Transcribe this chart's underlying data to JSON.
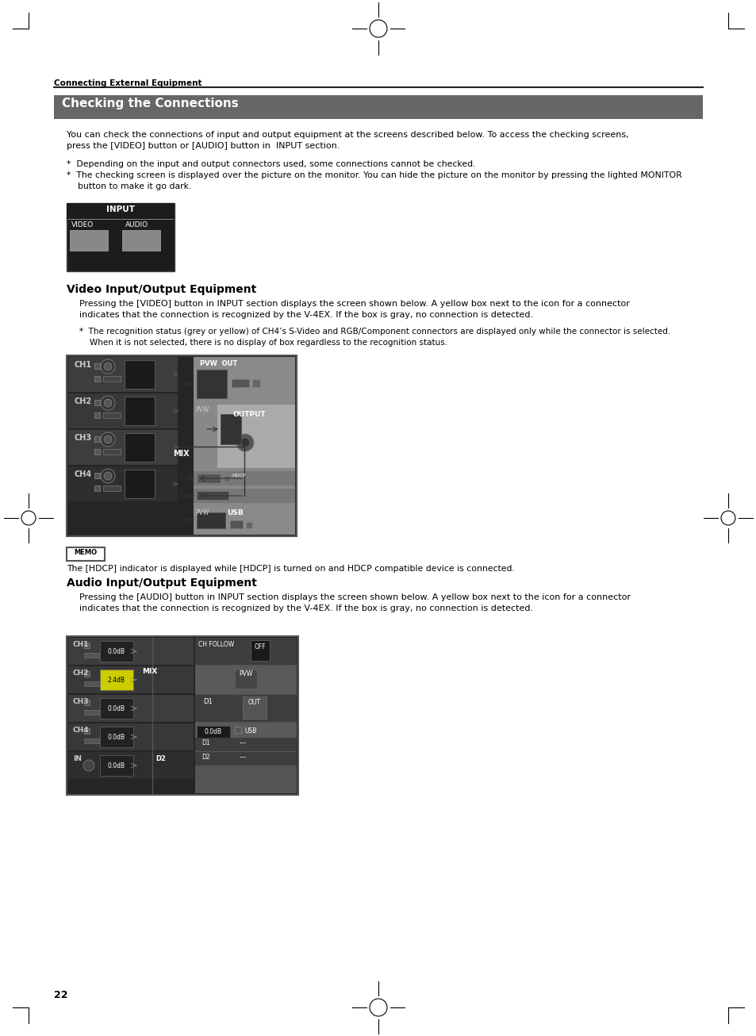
{
  "page_bg": "#ffffff",
  "section_header": "Connecting External Equipment",
  "title": "Checking the Connections",
  "title_bg": "#676767",
  "title_color": "#ffffff",
  "body_text_1": "You can check the connections of input and output equipment at the screens described below. To access the checking screens,\npress the [VIDEO] button or [AUDIO] button in  INPUT section.",
  "bullet_1": "*  Depending on the input and output connectors used, some connections cannot be checked.",
  "bullet_2": "*  The checking screen is displayed over the picture on the monitor. You can hide the picture on the monitor by pressing the lighted MONITOR\n    button to make it go dark.",
  "section2_title": "Video Input/Output Equipment",
  "section2_body": "Pressing the [VIDEO] button in INPUT section displays the screen shown below. A yellow box next to the icon for a connector\nindicates that the connection is recognized by the V-4EX. If the box is gray, no connection is detected.",
  "section2_bullet": "*  The recognition status (grey or yellow) of CH4’s S-Video and RGB/Component connectors are displayed only while the connector is selected.\n    When it is not selected, there is no display of box regardless to the recognition status.",
  "memo_text": "The [HDCP] indicator is displayed while [HDCP] is turned on and HDCP compatible device is connected.",
  "section3_title": "Audio Input/Output Equipment",
  "section3_body": "Pressing the [AUDIO] button in INPUT section displays the screen shown below. A yellow box next to the icon for a connector\nindicates that the connection is recognized by the V-4EX. If the box is gray, no connection is detected.",
  "page_number": "22"
}
